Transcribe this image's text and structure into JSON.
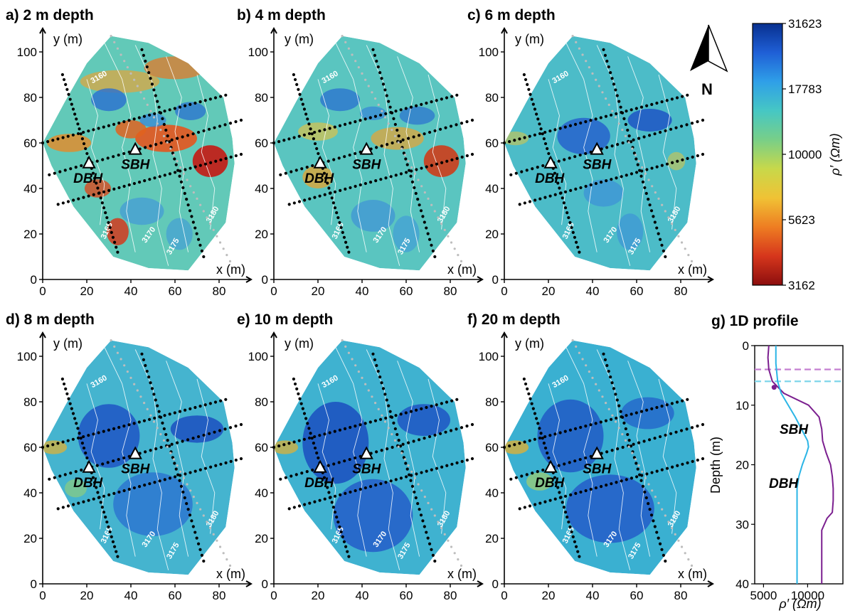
{
  "panels": [
    {
      "title": "a) 2 m depth",
      "level": 0
    },
    {
      "title": "b) 4 m depth",
      "level": 1
    },
    {
      "title": "c) 6 m depth",
      "level": 2
    },
    {
      "title": "d) 8 m depth",
      "level": 3
    },
    {
      "title": "e) 10 m depth",
      "level": 4
    },
    {
      "title": "f) 20 m depth",
      "level": 5
    }
  ],
  "map_axes": {
    "xlabel": "x (m)",
    "ylabel": "y (m)",
    "x_ticks": [
      "0",
      "20",
      "40",
      "60",
      "80"
    ],
    "y_ticks": [
      "0",
      "20",
      "40",
      "60",
      "80",
      "100"
    ],
    "x_range": [
      0,
      87
    ],
    "y_range": [
      0,
      107
    ]
  },
  "contours": [
    "3160",
    "3165",
    "3170",
    "3175",
    "3180"
  ],
  "boreholes": [
    {
      "label": "DBH",
      "x": 21,
      "y": 51
    },
    {
      "label": "SBH",
      "x": 42,
      "y": 57
    }
  ],
  "survey_lines": [
    {
      "style": "black",
      "points": [
        [
          9,
          90
        ],
        [
          34,
          12
        ]
      ]
    },
    {
      "style": "black",
      "points": [
        [
          45,
          101
        ],
        [
          73,
          10
        ]
      ]
    },
    {
      "style": "black",
      "points": [
        [
          0,
          60
        ],
        [
          83,
          81
        ]
      ]
    },
    {
      "style": "black",
      "points": [
        [
          3,
          46
        ],
        [
          90,
          70
        ]
      ]
    },
    {
      "style": "black",
      "points": [
        [
          7,
          33
        ],
        [
          90,
          55
        ]
      ]
    },
    {
      "style": "grey",
      "points": [
        [
          31,
          107
        ],
        [
          85,
          8
        ]
      ]
    }
  ],
  "colorbar": {
    "label": "ρ′ (Ωm)",
    "ticks": [
      "31623",
      "17783",
      "10000",
      "5623",
      "3162"
    ],
    "colors": [
      "#08308f",
      "#1f5fd6",
      "#2f9fe8",
      "#46c7c4",
      "#78cf88",
      "#c8d84a",
      "#f0c235",
      "#ee7d22",
      "#d6361c",
      "#8c0e0e"
    ]
  },
  "north_label": "N",
  "chart_data": {
    "type": "line",
    "title": "g) 1D profile",
    "xlabel": "ρ′ (Ωm)",
    "ylabel": "Depth (m)",
    "x_ticks": [
      "5000",
      "10000"
    ],
    "y_ticks": [
      "0",
      "10",
      "20",
      "30",
      "40"
    ],
    "xlim": [
      4000,
      14000
    ],
    "ylim": [
      0,
      40
    ],
    "y_inverted": true,
    "series": [
      {
        "name": "SBH",
        "color": "#7b1f8f",
        "depth": [
          0,
          2,
          4,
          6,
          8,
          10,
          12,
          14,
          16,
          18,
          20,
          22,
          24,
          26,
          28,
          29,
          31,
          34,
          37,
          40
        ],
        "rho": [
          5600,
          5500,
          5600,
          6000,
          7300,
          10100,
          11300,
          11600,
          11700,
          12100,
          12600,
          12800,
          12900,
          12900,
          12800,
          12200,
          11600,
          11600,
          11600,
          11600
        ]
      },
      {
        "name": "DBH",
        "color": "#2bb5e6",
        "depth": [
          0,
          3,
          6,
          8,
          10,
          12,
          14,
          16,
          17,
          18,
          20,
          22,
          24,
          28,
          32,
          36,
          40
        ],
        "rho": [
          6400,
          6400,
          6600,
          7000,
          7800,
          8600,
          9300,
          10000,
          10100,
          9900,
          9400,
          9000,
          8800,
          8800,
          8800,
          8800,
          8800
        ]
      }
    ],
    "hlines": [
      {
        "depth": 4,
        "color": "#c47fd0"
      },
      {
        "depth": 6,
        "color": "#7fd6ea"
      }
    ],
    "marker": {
      "series": "SBH",
      "depth": 7,
      "rho": 6200
    }
  }
}
